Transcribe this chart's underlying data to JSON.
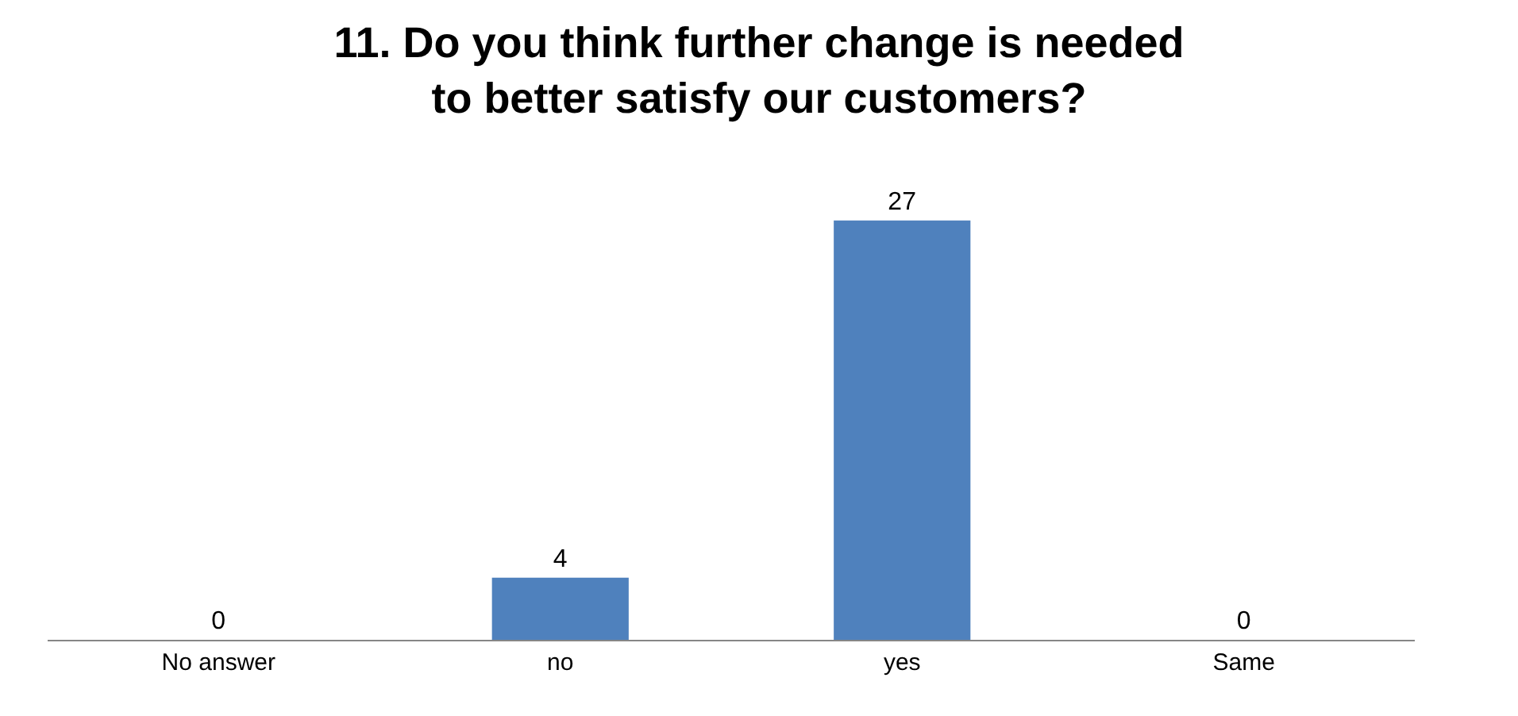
{
  "chart_data": {
    "type": "bar",
    "title": "11. Do you think further change is needed to better satisfy our customers?",
    "categories": [
      "No answer",
      "no",
      "yes",
      "Same"
    ],
    "values": [
      0,
      4,
      27,
      0
    ],
    "color": "#4f81bd",
    "data_labels": true,
    "legend": false
  }
}
